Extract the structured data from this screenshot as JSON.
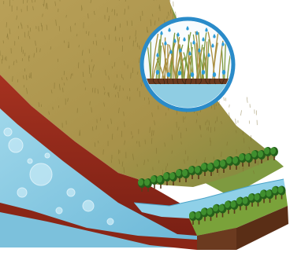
{
  "figure": {
    "kind": "illustration",
    "components": [
      {
        "id": "hillside",
        "icon": "grassy-slope"
      },
      {
        "id": "soil-layer",
        "icon": "red-soil-strata"
      },
      {
        "id": "groundwater",
        "icon": "water-channel"
      },
      {
        "id": "riparian-forest",
        "icon": "tree-strip"
      },
      {
        "id": "inset",
        "icon": "rain-on-grass-roots"
      }
    ],
    "palette": {
      "grass": "#b79a4c",
      "grass_dark": "#8d7a36",
      "grass_green": "#6f8f3a",
      "soil": "#9c2b1a",
      "soil_dark": "#6b1d12",
      "water": "#8fcde3",
      "water_dark": "#4aa3c8",
      "tree": "#3f8f2e",
      "tree_dark": "#245e1a",
      "ground_brown": "#6b3a1f",
      "inset_ring": "#2a8bc9",
      "rain_drop": "#2d9bd6"
    }
  }
}
